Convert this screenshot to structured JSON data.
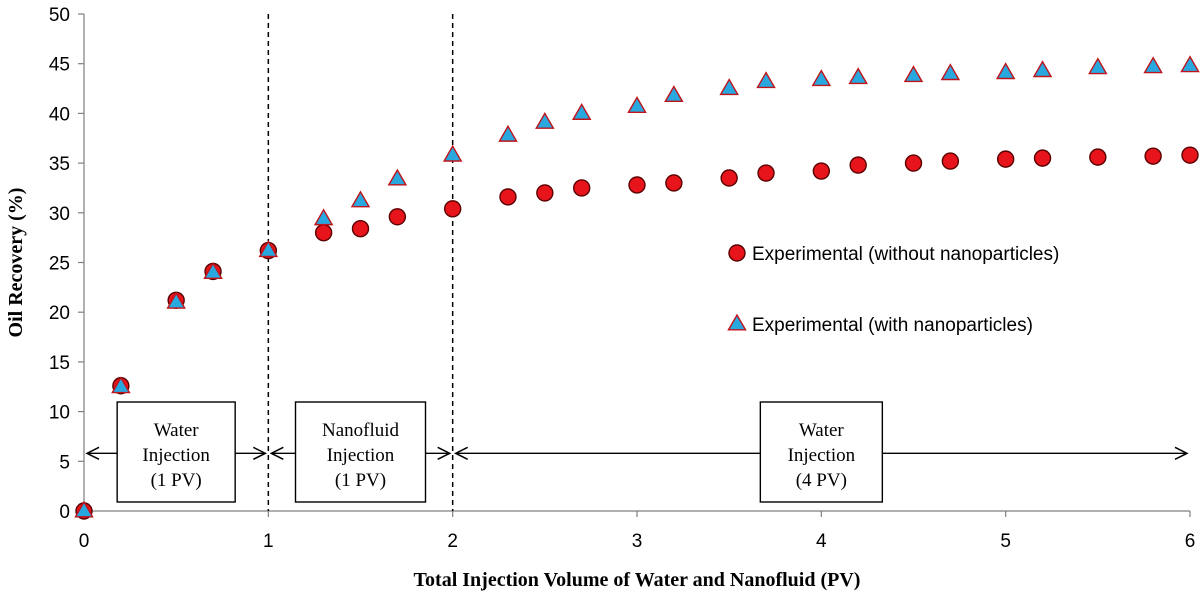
{
  "chart_data": {
    "type": "scatter",
    "title": "",
    "xlabel": "Total Injection Volume of Water and Nanofluid (PV)",
    "ylabel": "Oil Recovery (%)",
    "xlim": [
      0,
      6
    ],
    "ylim": [
      0,
      50
    ],
    "x_ticks": [
      "0",
      "1",
      "2",
      "3",
      "4",
      "5",
      "6"
    ],
    "y_ticks": [
      "0",
      "5",
      "10",
      "15",
      "20",
      "25",
      "30",
      "35",
      "40",
      "45",
      "50"
    ],
    "grid": false,
    "legend_position": "right",
    "series": [
      {
        "name": "Experimental (without nanoparticles)",
        "marker": "circle",
        "fill": "#e8141b",
        "stroke": "#5a0000",
        "x": [
          0,
          0.2,
          0.5,
          0.7,
          1.0,
          1.3,
          1.5,
          1.7,
          2.0,
          2.3,
          2.5,
          2.7,
          3.0,
          3.2,
          3.5,
          3.7,
          4.0,
          4.2,
          4.5,
          4.7,
          5.0,
          5.2,
          5.5,
          5.8,
          6.0
        ],
        "y": [
          0,
          12.6,
          21.2,
          24.1,
          26.2,
          28.0,
          28.4,
          29.6,
          30.4,
          31.6,
          32.0,
          32.5,
          32.8,
          33.0,
          33.5,
          34.0,
          34.2,
          34.8,
          35.0,
          35.2,
          35.4,
          35.5,
          35.6,
          35.7,
          35.8
        ]
      },
      {
        "name": "Experimental (with nanoparticles)",
        "marker": "triangle",
        "fill": "#29a8e0",
        "stroke": "#c0141b",
        "x": [
          0,
          0.2,
          0.5,
          0.7,
          1.0,
          1.3,
          1.5,
          1.7,
          2.0,
          2.3,
          2.5,
          2.7,
          3.0,
          3.2,
          3.5,
          3.7,
          4.0,
          4.2,
          4.5,
          4.7,
          5.0,
          5.2,
          5.5,
          5.8,
          6.0
        ],
        "y": [
          0,
          12.5,
          21.0,
          24.0,
          26.2,
          29.4,
          31.2,
          33.4,
          35.8,
          37.8,
          39.1,
          40.0,
          40.7,
          41.8,
          42.5,
          43.2,
          43.4,
          43.6,
          43.8,
          44.0,
          44.1,
          44.3,
          44.6,
          44.7,
          44.8
        ]
      }
    ],
    "vertical_lines_x": [
      1,
      2
    ],
    "annotations": [
      {
        "lines": [
          "Water",
          "Injection",
          "(1 PV)"
        ],
        "x_from": 0,
        "x_to": 1,
        "y": 5.8
      },
      {
        "lines": [
          "Nanofluid",
          "Injection",
          "(1 PV)"
        ],
        "x_from": 1,
        "x_to": 2,
        "y": 5.8
      },
      {
        "lines": [
          "Water",
          "Injection",
          "(4 PV)"
        ],
        "x_from": 2,
        "x_to": 6,
        "y": 5.8
      }
    ]
  }
}
